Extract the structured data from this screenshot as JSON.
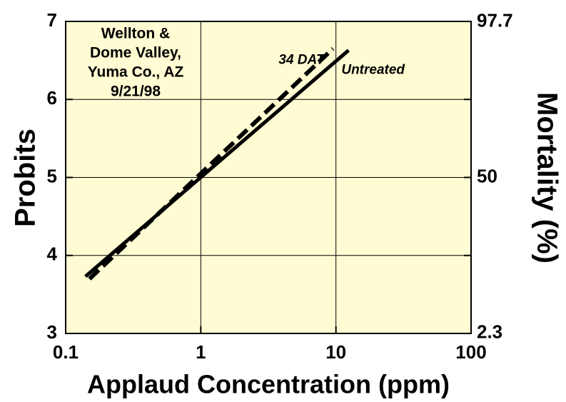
{
  "chart_data": {
    "type": "line",
    "annotation": [
      "Wellton &",
      "Dome Valley,",
      "Yuma Co., AZ",
      "9/21/98"
    ],
    "xlabel": "Applaud Concentration (ppm)",
    "ylabel": "Probits",
    "y2label": "Mortality (%)",
    "xscale": "log",
    "xlim": [
      0.1,
      100
    ],
    "xticks": [
      0.1,
      1,
      10,
      100
    ],
    "ylim": [
      3,
      7
    ],
    "yticks": [
      3,
      4,
      5,
      6,
      7
    ],
    "y2scale": "probit",
    "y2lim": [
      2.3,
      97.7
    ],
    "y2ticks": [
      2.3,
      50,
      97.7
    ],
    "grid": true,
    "background": "#fffbd2",
    "series": [
      {
        "name": "34 DAT",
        "color": "#000000",
        "dash": true,
        "x": [
          0.15,
          9.5
        ],
        "values": [
          3.7,
          6.65
        ]
      },
      {
        "name": "Untreated",
        "color": "#000000",
        "dash": false,
        "x": [
          0.14,
          12.4
        ],
        "values": [
          3.73,
          6.63
        ]
      }
    ]
  }
}
